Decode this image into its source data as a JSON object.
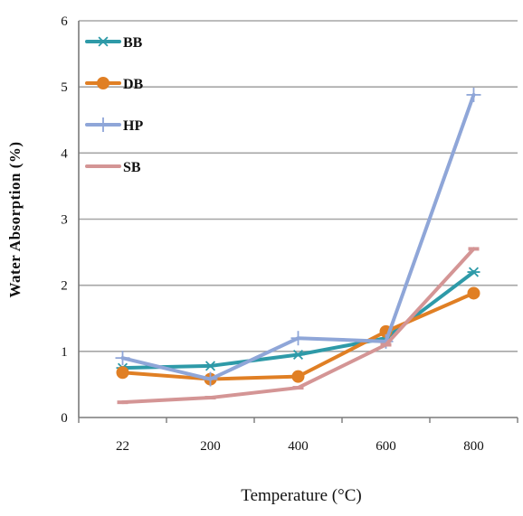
{
  "chart_data": {
    "type": "line",
    "title": "",
    "xlabel": "Temperature (°C)",
    "ylabel": "Water Absorption  (%)",
    "categories": [
      "22",
      "200",
      "400",
      "600",
      "800"
    ],
    "ylim": [
      0,
      6
    ],
    "yticks": [
      "0",
      "1",
      "2",
      "3",
      "4",
      "5",
      "6"
    ],
    "grid": true,
    "legend_position": "top-left",
    "series": [
      {
        "name": "BB",
        "values": [
          0.75,
          0.78,
          0.95,
          1.2,
          2.2
        ],
        "color": "#2e9aa8",
        "marker": "asterisk"
      },
      {
        "name": "DB",
        "values": [
          0.68,
          0.58,
          0.62,
          1.3,
          1.88
        ],
        "color": "#e07f24",
        "marker": "circle"
      },
      {
        "name": "HP",
        "values": [
          0.9,
          0.58,
          1.2,
          1.15,
          4.88
        ],
        "color": "#8fa6d8",
        "marker": "plus"
      },
      {
        "name": "SB",
        "values": [
          0.23,
          0.3,
          0.45,
          1.1,
          2.55
        ],
        "color": "#d49595",
        "marker": "dash"
      }
    ]
  }
}
